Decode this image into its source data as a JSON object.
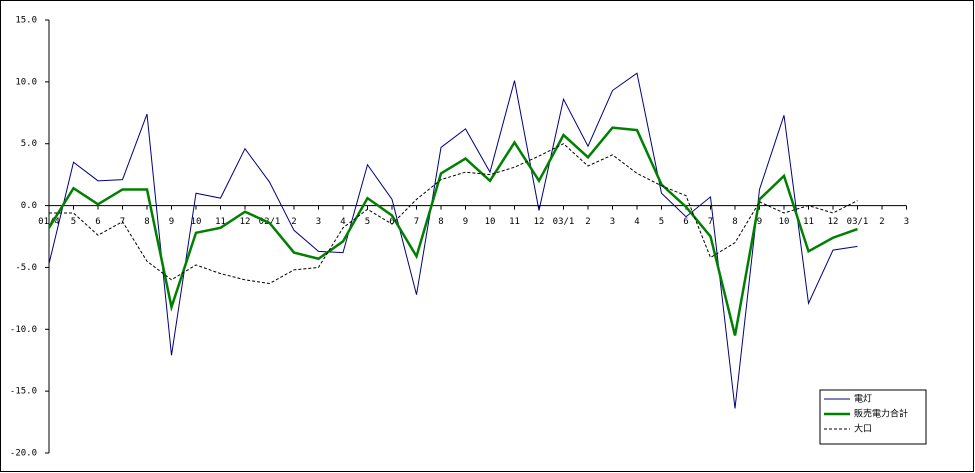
{
  "chart_data": {
    "type": "line",
    "categories": [
      "01/4",
      "5",
      "6",
      "7",
      "8",
      "9",
      "10",
      "11",
      "12",
      "02/1",
      "2",
      "3",
      "4",
      "5",
      "6",
      "7",
      "8",
      "9",
      "10",
      "11",
      "12",
      "03/1",
      "2",
      "3",
      "4",
      "5",
      "6",
      "7",
      "8",
      "9",
      "10",
      "11",
      "12",
      "03/1",
      "2",
      "3"
    ],
    "series": [
      {
        "name": "電灯",
        "color": "#000080",
        "line_width": 1,
        "dashed": false,
        "values": [
          -4.7,
          3.5,
          2.0,
          2.1,
          7.4,
          -12.1,
          1.0,
          0.6,
          4.6,
          1.9,
          -2.0,
          -3.7,
          -3.8,
          3.3,
          0.5,
          -7.2,
          4.7,
          6.2,
          2.7,
          10.1,
          -0.4,
          8.6,
          4.8,
          9.3,
          10.7,
          1.0,
          -0.9,
          0.7,
          -16.4,
          1.3,
          7.3,
          -7.9,
          -3.6,
          -3.3,
          null,
          null
        ]
      },
      {
        "name": "販売電力合計",
        "color": "#008000",
        "line_width": 2.5,
        "dashed": false,
        "values": [
          -1.8,
          1.4,
          0.1,
          1.3,
          1.3,
          -8.2,
          -2.2,
          -1.8,
          -0.5,
          -1.4,
          -3.8,
          -4.3,
          -2.9,
          0.6,
          -0.8,
          -4.1,
          2.6,
          3.8,
          2.0,
          5.1,
          2.0,
          5.7,
          3.9,
          6.3,
          6.1,
          1.7,
          -0.1,
          -2.5,
          -10.5,
          0.5,
          2.4,
          -3.7,
          -2.6,
          -1.9,
          null,
          null
        ]
      },
      {
        "name": "大口",
        "color": "#000000",
        "line_width": 1,
        "dashed": true,
        "values": [
          -0.6,
          -0.6,
          -2.4,
          -1.3,
          -4.5,
          -6.0,
          -4.8,
          -5.5,
          -6.0,
          -6.3,
          -5.2,
          -5.0,
          -1.8,
          -0.3,
          -1.5,
          0.5,
          2.1,
          2.7,
          2.5,
          3.1,
          4.0,
          5.0,
          3.2,
          4.1,
          2.6,
          1.6,
          0.8,
          -4.2,
          -3.0,
          0.3,
          -0.6,
          0.0,
          -0.6,
          0.4,
          null,
          null
        ]
      }
    ],
    "ylim": [
      -20,
      15
    ],
    "yticks": [
      {
        "value": 15,
        "label": "15.0"
      },
      {
        "value": 10,
        "label": "10.0"
      },
      {
        "value": 5,
        "label": "5.0"
      },
      {
        "value": 0,
        "label": "0.0"
      },
      {
        "value": -5,
        "label": "-5.0"
      },
      {
        "value": -10,
        "label": "-10.0"
      },
      {
        "value": -15,
        "label": "-15.0"
      },
      {
        "value": -20,
        "label": "-20.0"
      }
    ],
    "legend": "bottom-right"
  }
}
